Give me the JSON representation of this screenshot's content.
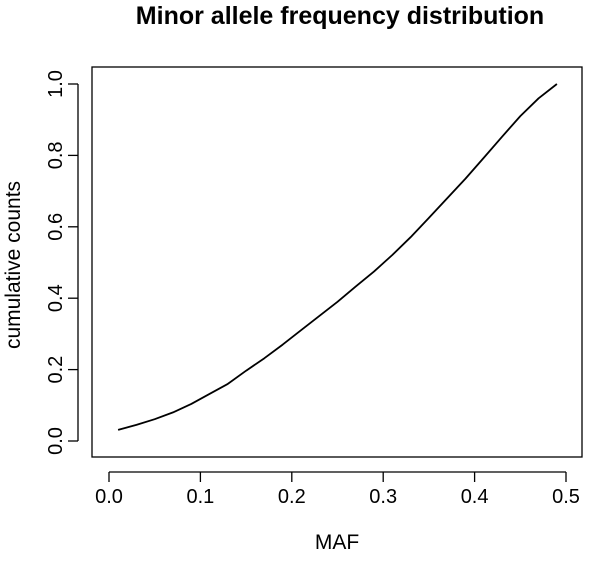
{
  "chart_data": {
    "type": "line",
    "title": "Minor allele frequency distribution",
    "xlabel": "MAF",
    "ylabel": "cumulative counts",
    "xlim": [
      0.0,
      0.5
    ],
    "ylim": [
      0.0,
      1.0
    ],
    "xticks": [
      "0.0",
      "0.1",
      "0.2",
      "0.3",
      "0.4",
      "0.5"
    ],
    "yticks": [
      "0.0",
      "0.2",
      "0.4",
      "0.6",
      "0.8",
      "1.0"
    ],
    "grid": false,
    "series": [
      {
        "x": [
          0.01,
          0.03,
          0.05,
          0.07,
          0.09,
          0.11,
          0.13,
          0.15,
          0.17,
          0.19,
          0.21,
          0.23,
          0.25,
          0.27,
          0.29,
          0.31,
          0.33,
          0.35,
          0.37,
          0.39,
          0.41,
          0.43,
          0.45,
          0.47,
          0.49
        ],
        "y": [
          0.031,
          0.045,
          0.061,
          0.08,
          0.104,
          0.132,
          0.16,
          0.197,
          0.232,
          0.27,
          0.31,
          0.35,
          0.39,
          0.433,
          0.475,
          0.521,
          0.571,
          0.625,
          0.68,
          0.735,
          0.793,
          0.852,
          0.91,
          0.96,
          1.0
        ]
      }
    ]
  }
}
